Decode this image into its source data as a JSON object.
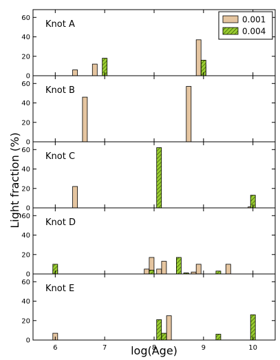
{
  "chart_data": {
    "type": "bar",
    "xlabel": "log(Age)",
    "ylabel": "Light fraction (%)",
    "xlim": [
      5.55,
      10.45
    ],
    "ylim": [
      0,
      68
    ],
    "x_ticks": [
      6,
      7,
      8,
      9,
      10
    ],
    "y_ticks": [
      0,
      20,
      40,
      60
    ],
    "legend": {
      "position": "top-right",
      "entries": [
        "0.001",
        "0.004"
      ]
    },
    "colors": {
      "s0.001": "#e5c5a0",
      "s0.004": "#9acd32",
      "edge": "#000000"
    },
    "panels": [
      {
        "label": "Knot A",
        "series": [
          {
            "name": "0.001",
            "points": [
              [
                6.4,
                6
              ],
              [
                6.8,
                12
              ],
              [
                8.9,
                37
              ],
              [
                9.0,
                11
              ]
            ]
          },
          {
            "name": "0.004",
            "points": [
              [
                7.0,
                18
              ],
              [
                9.0,
                16
              ]
            ]
          }
        ]
      },
      {
        "label": "Knot B",
        "series": [
          {
            "name": "0.001",
            "points": [
              [
                6.6,
                46
              ],
              [
                8.7,
                57
              ]
            ]
          },
          {
            "name": "0.004",
            "points": []
          }
        ]
      },
      {
        "label": "Knot C",
        "series": [
          {
            "name": "0.001",
            "points": [
              [
                6.4,
                22
              ],
              [
                9.95,
                1
              ]
            ]
          },
          {
            "name": "0.004",
            "points": [
              [
                8.1,
                62
              ],
              [
                10.0,
                13
              ]
            ]
          }
        ]
      },
      {
        "label": "Knot D",
        "series": [
          {
            "name": "0.001",
            "points": [
              [
                6.0,
                4
              ],
              [
                7.85,
                5
              ],
              [
                7.95,
                17
              ],
              [
                8.1,
                5
              ],
              [
                8.2,
                13
              ],
              [
                8.65,
                1
              ],
              [
                8.8,
                2
              ],
              [
                8.9,
                10
              ],
              [
                9.5,
                10
              ]
            ]
          },
          {
            "name": "0.004",
            "points": [
              [
                6.0,
                10
              ],
              [
                7.95,
                4
              ],
              [
                8.5,
                17
              ],
              [
                8.65,
                1
              ],
              [
                9.3,
                3
              ]
            ]
          }
        ]
      },
      {
        "label": "Knot E",
        "series": [
          {
            "name": "0.001",
            "points": [
              [
                6.0,
                7
              ],
              [
                8.3,
                25
              ]
            ]
          },
          {
            "name": "0.004",
            "points": [
              [
                8.1,
                21
              ],
              [
                8.2,
                7
              ],
              [
                9.3,
                6
              ],
              [
                10.0,
                26
              ]
            ]
          }
        ]
      }
    ]
  }
}
